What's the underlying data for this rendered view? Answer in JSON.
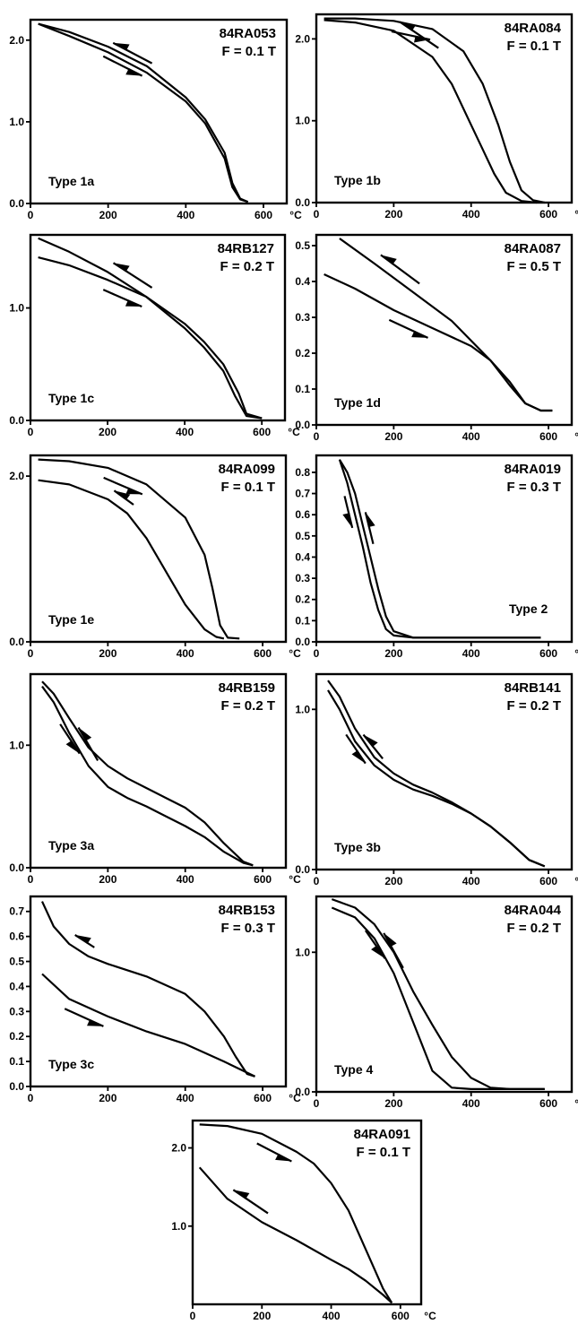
{
  "figure": {
    "x_unit_label": "°C",
    "x_ticks": [
      0,
      200,
      400,
      600
    ],
    "axis_line_color": "#000000"
  },
  "chart_data": [
    {
      "type": "line",
      "sample": "84RA053",
      "field": "F = 0.1 T",
      "type_label": "Type 1a",
      "xlim": [
        0,
        660
      ],
      "ylim": [
        0,
        2.25
      ],
      "yticks": [
        0.0,
        1.0,
        2.0
      ],
      "ytick_labels": [
        "0.0",
        "1.0",
        "2.0"
      ],
      "series": [
        {
          "direction": "heating",
          "x": [
            20,
            100,
            200,
            300,
            400,
            450,
            500,
            520,
            540,
            560
          ],
          "y": [
            2.2,
            2.1,
            1.92,
            1.68,
            1.3,
            1.03,
            0.62,
            0.25,
            0.06,
            0.02
          ]
        },
        {
          "direction": "cooling",
          "x": [
            20,
            100,
            200,
            300,
            400,
            450,
            500,
            520,
            540,
            560
          ],
          "y": [
            2.2,
            2.05,
            1.85,
            1.6,
            1.25,
            0.98,
            0.55,
            0.2,
            0.05,
            0.02
          ]
        }
      ]
    },
    {
      "type": "line",
      "sample": "84RA084",
      "field": "F = 0.1 T",
      "type_label": "Type 1b",
      "xlim": [
        0,
        660
      ],
      "ylim": [
        0,
        2.3
      ],
      "yticks": [
        0.0,
        1.0,
        2.0
      ],
      "ytick_labels": [
        "0.0",
        "1.0",
        "2.0"
      ],
      "series": [
        {
          "direction": "heating",
          "x": [
            20,
            100,
            200,
            300,
            380,
            430,
            470,
            500,
            530,
            560,
            590
          ],
          "y": [
            2.25,
            2.25,
            2.22,
            2.12,
            1.85,
            1.45,
            0.95,
            0.5,
            0.15,
            0.03,
            0.0
          ]
        },
        {
          "direction": "cooling",
          "x": [
            20,
            100,
            200,
            300,
            350,
            400,
            430,
            460,
            490,
            530,
            570
          ],
          "y": [
            2.23,
            2.2,
            2.1,
            1.78,
            1.45,
            0.95,
            0.65,
            0.35,
            0.12,
            0.02,
            0.0
          ]
        }
      ]
    },
    {
      "type": "line",
      "sample": "84RB127",
      "field": "F = 0.2 T",
      "type_label": "Type 1c",
      "xlim": [
        0,
        660
      ],
      "ylim": [
        0,
        1.65
      ],
      "yticks": [
        0.0,
        1.0
      ],
      "ytick_labels": [
        "0.0",
        "1.0"
      ],
      "series": [
        {
          "direction": "heating",
          "x": [
            20,
            100,
            200,
            300,
            400,
            450,
            500,
            540,
            560,
            600
          ],
          "y": [
            1.45,
            1.38,
            1.25,
            1.1,
            0.86,
            0.7,
            0.5,
            0.24,
            0.06,
            0.02
          ]
        },
        {
          "direction": "cooling",
          "x": [
            20,
            100,
            200,
            300,
            400,
            450,
            500,
            530,
            560,
            600
          ],
          "y": [
            1.62,
            1.5,
            1.32,
            1.1,
            0.82,
            0.65,
            0.44,
            0.22,
            0.04,
            0.02
          ]
        }
      ]
    },
    {
      "type": "line",
      "sample": "84RA087",
      "field": "F = 0.5 T",
      "type_label": "Type 1d",
      "xlim": [
        0,
        660
      ],
      "ylim": [
        0,
        0.53
      ],
      "yticks": [
        0.0,
        0.1,
        0.2,
        0.3,
        0.4,
        0.5
      ],
      "ytick_labels": [
        "0.0",
        "0.1",
        "0.2",
        "0.3",
        "0.4",
        "0.5"
      ],
      "series": [
        {
          "direction": "heating",
          "x": [
            20,
            100,
            200,
            300,
            400,
            450,
            500,
            540,
            580,
            610
          ],
          "y": [
            0.42,
            0.38,
            0.32,
            0.27,
            0.22,
            0.18,
            0.12,
            0.06,
            0.04,
            0.04
          ]
        },
        {
          "direction": "cooling",
          "x": [
            60,
            150,
            250,
            350,
            450,
            500,
            540,
            580,
            610
          ],
          "y": [
            0.52,
            0.45,
            0.37,
            0.29,
            0.18,
            0.11,
            0.06,
            0.04,
            0.04
          ]
        }
      ]
    },
    {
      "type": "line",
      "sample": "84RA099",
      "field": "F = 0.1 T",
      "type_label": "Type 1e",
      "xlim": [
        0,
        660
      ],
      "ylim": [
        0,
        2.25
      ],
      "yticks": [
        0.0,
        2.0
      ],
      "ytick_labels": [
        "0.0",
        "2.0"
      ],
      "series": [
        {
          "direction": "heating",
          "x": [
            20,
            100,
            200,
            300,
            400,
            450,
            470,
            490,
            510,
            540
          ],
          "y": [
            2.2,
            2.18,
            2.1,
            1.9,
            1.5,
            1.05,
            0.65,
            0.2,
            0.05,
            0.04
          ]
        },
        {
          "direction": "cooling",
          "x": [
            20,
            100,
            200,
            250,
            300,
            350,
            400,
            450,
            480,
            500
          ],
          "y": [
            1.95,
            1.9,
            1.72,
            1.55,
            1.25,
            0.85,
            0.45,
            0.15,
            0.06,
            0.04
          ]
        }
      ]
    },
    {
      "type": "line",
      "sample": "84RA019",
      "field": "F = 0.3 T",
      "type_label": "Type 2",
      "xlim": [
        0,
        660
      ],
      "ylim": [
        0,
        0.88
      ],
      "yticks": [
        0.0,
        0.1,
        0.2,
        0.3,
        0.4,
        0.5,
        0.6,
        0.7,
        0.8
      ],
      "ytick_labels": [
        "0.0",
        "0.1",
        "0.2",
        "0.3",
        "0.4",
        "0.5",
        "0.6",
        "0.7",
        "0.8"
      ],
      "series": [
        {
          "direction": "heating",
          "x": [
            60,
            80,
            100,
            120,
            140,
            160,
            180,
            200,
            250,
            300,
            400,
            500,
            580
          ],
          "y": [
            0.86,
            0.8,
            0.7,
            0.55,
            0.4,
            0.25,
            0.12,
            0.05,
            0.02,
            0.02,
            0.02,
            0.02,
            0.02
          ]
        },
        {
          "direction": "cooling",
          "x": [
            60,
            80,
            100,
            120,
            140,
            160,
            180,
            200,
            250,
            300,
            400,
            500,
            580
          ],
          "y": [
            0.86,
            0.75,
            0.6,
            0.45,
            0.28,
            0.15,
            0.06,
            0.03,
            0.02,
            0.02,
            0.02,
            0.02,
            0.02
          ]
        }
      ]
    },
    {
      "type": "line",
      "sample": "84RB159",
      "field": "F = 0.2 T",
      "type_label": "Type 3a",
      "xlim": [
        0,
        660
      ],
      "ylim": [
        0,
        1.58
      ],
      "yticks": [
        0.0,
        1.0
      ],
      "ytick_labels": [
        "0.0",
        "1.0"
      ],
      "series": [
        {
          "direction": "heating",
          "x": [
            30,
            60,
            100,
            150,
            200,
            250,
            300,
            350,
            400,
            450,
            500,
            550,
            575
          ],
          "y": [
            1.52,
            1.42,
            1.22,
            0.98,
            0.83,
            0.73,
            0.65,
            0.57,
            0.49,
            0.37,
            0.2,
            0.05,
            0.02
          ]
        },
        {
          "direction": "cooling",
          "x": [
            30,
            60,
            100,
            150,
            200,
            250,
            300,
            350,
            400,
            450,
            500,
            550,
            575
          ],
          "y": [
            1.48,
            1.35,
            1.1,
            0.83,
            0.66,
            0.57,
            0.5,
            0.42,
            0.34,
            0.25,
            0.13,
            0.04,
            0.02
          ]
        }
      ]
    },
    {
      "type": "line",
      "sample": "84RB141",
      "field": "F = 0.2 T",
      "type_label": "Type 3b",
      "xlim": [
        0,
        660
      ],
      "ylim": [
        0,
        1.22
      ],
      "yticks": [
        0.0,
        1.0
      ],
      "ytick_labels": [
        "0.0",
        "1.0"
      ],
      "series": [
        {
          "direction": "heating",
          "x": [
            30,
            60,
            100,
            150,
            200,
            250,
            300,
            350,
            400,
            450,
            500,
            550,
            590
          ],
          "y": [
            1.18,
            1.08,
            0.88,
            0.7,
            0.6,
            0.53,
            0.48,
            0.42,
            0.35,
            0.27,
            0.17,
            0.06,
            0.02
          ]
        },
        {
          "direction": "cooling",
          "x": [
            30,
            60,
            100,
            150,
            200,
            250,
            300,
            350,
            400,
            450,
            500,
            550,
            590
          ],
          "y": [
            1.12,
            1.0,
            0.8,
            0.65,
            0.56,
            0.5,
            0.46,
            0.41,
            0.35,
            0.27,
            0.17,
            0.06,
            0.02
          ]
        }
      ]
    },
    {
      "type": "line",
      "sample": "84RB153",
      "field": "F = 0.3 T",
      "type_label": "Type 3c",
      "xlim": [
        0,
        660
      ],
      "ylim": [
        0,
        0.76
      ],
      "yticks": [
        0.0,
        0.1,
        0.2,
        0.3,
        0.4,
        0.5,
        0.6,
        0.7
      ],
      "ytick_labels": [
        "0.0",
        "0.1",
        "0.2",
        "0.3",
        "0.4",
        "0.5",
        "0.6",
        "0.7"
      ],
      "series": [
        {
          "direction": "heating",
          "x": [
            30,
            100,
            200,
            300,
            400,
            500,
            540,
            580
          ],
          "y": [
            0.45,
            0.35,
            0.28,
            0.22,
            0.17,
            0.1,
            0.07,
            0.04
          ]
        },
        {
          "direction": "cooling",
          "x": [
            30,
            60,
            100,
            150,
            200,
            300,
            400,
            450,
            500,
            530,
            560,
            580
          ],
          "y": [
            0.74,
            0.64,
            0.57,
            0.52,
            0.49,
            0.44,
            0.37,
            0.3,
            0.2,
            0.12,
            0.05,
            0.04
          ]
        }
      ]
    },
    {
      "type": "line",
      "sample": "84RA044",
      "field": "F = 0.2 T",
      "type_label": "Type 4",
      "xlim": [
        0,
        660
      ],
      "ylim": [
        0,
        1.4
      ],
      "yticks": [
        0.0,
        1.0
      ],
      "ytick_labels": [
        "0.0",
        "1.0"
      ],
      "series": [
        {
          "direction": "heating",
          "x": [
            40,
            100,
            150,
            200,
            250,
            300,
            350,
            400,
            450,
            500,
            590
          ],
          "y": [
            1.38,
            1.32,
            1.2,
            1.0,
            0.72,
            0.48,
            0.25,
            0.1,
            0.03,
            0.02,
            0.02
          ]
        },
        {
          "direction": "cooling",
          "x": [
            40,
            100,
            150,
            200,
            250,
            300,
            350,
            400,
            450,
            500,
            590
          ],
          "y": [
            1.32,
            1.25,
            1.1,
            0.85,
            0.5,
            0.15,
            0.03,
            0.02,
            0.02,
            0.02,
            0.02
          ]
        }
      ]
    },
    {
      "type": "line",
      "sample": "84RA091",
      "field": "F = 0.1 T",
      "type_label": "",
      "xlim": [
        0,
        660
      ],
      "ylim": [
        0,
        2.35
      ],
      "yticks": [
        1.0,
        2.0
      ],
      "ytick_labels": [
        "1.0",
        "2.0"
      ],
      "series": [
        {
          "direction": "heating",
          "x": [
            20,
            100,
            200,
            300,
            350,
            400,
            450,
            500,
            550,
            575
          ],
          "y": [
            2.3,
            2.28,
            2.18,
            1.95,
            1.8,
            1.55,
            1.2,
            0.7,
            0.2,
            0.02
          ]
        },
        {
          "direction": "cooling",
          "x": [
            20,
            60,
            100,
            200,
            300,
            400,
            450,
            500,
            550,
            575
          ],
          "y": [
            1.75,
            1.55,
            1.35,
            1.05,
            0.82,
            0.57,
            0.45,
            0.3,
            0.12,
            0.02
          ]
        }
      ]
    }
  ]
}
